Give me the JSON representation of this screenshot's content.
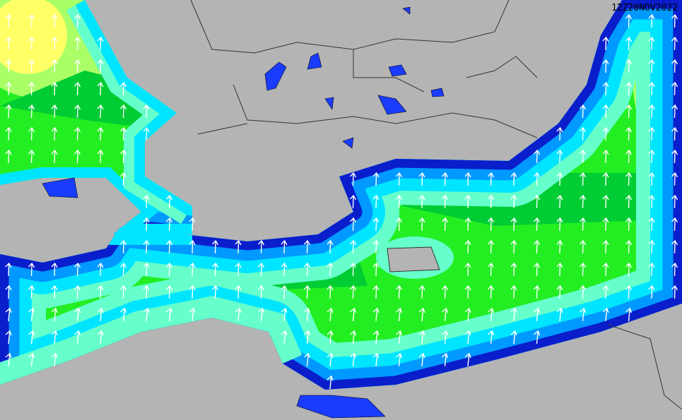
{
  "map": {
    "timestamp": "12Z20NOV2022",
    "arrow_direction": "north",
    "colors": {
      "land": "#b4b4b4",
      "border": "#333333",
      "lake": "#1a3cff",
      "sea_dark_blue": "#0a1ecc",
      "sea_blue": "#0099ff",
      "sea_cyan": "#00e5ff",
      "sea_aquamarine": "#66ffcc",
      "sea_green_light": "#22ee22",
      "sea_green_dark": "#00cc33",
      "sea_yellow_green": "#aaff66",
      "sea_yellow": "#ffff66",
      "arrow": "#ffffff"
    }
  }
}
